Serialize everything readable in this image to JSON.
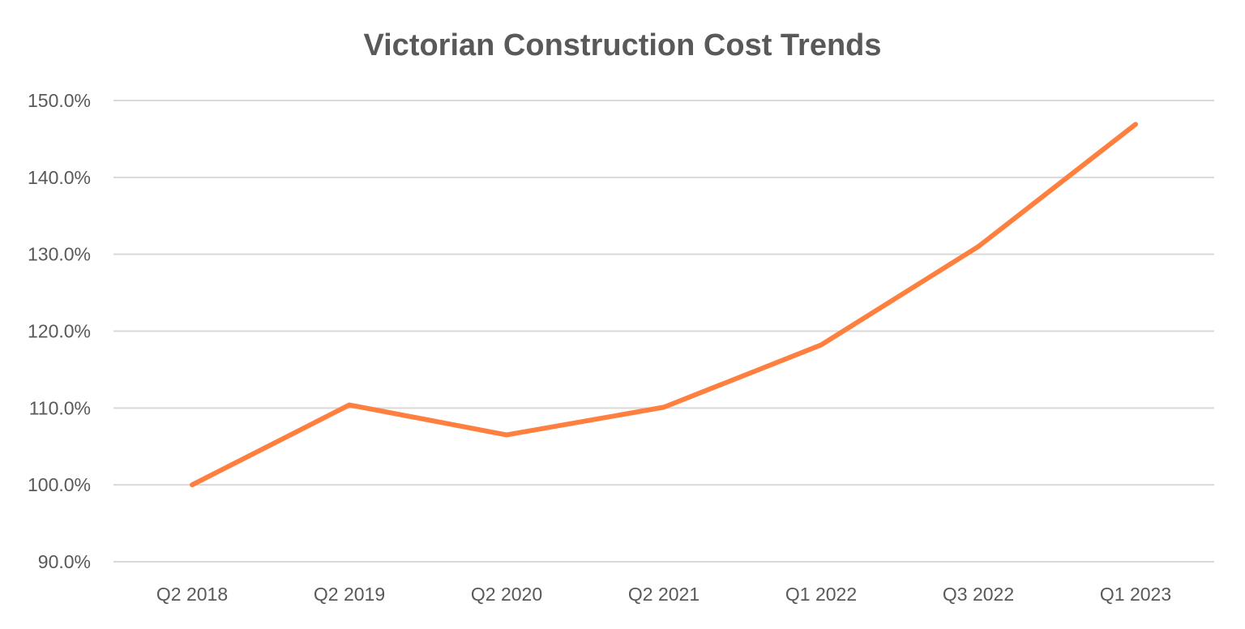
{
  "chart_data": {
    "type": "line",
    "title": "Victorian Construction Cost Trends",
    "xlabel": "",
    "ylabel": "",
    "categories": [
      "Q2 2018",
      "Q2 2019",
      "Q2 2020",
      "Q2 2021",
      "Q1 2022",
      "Q3 2022",
      "Q1 2023"
    ],
    "series": [
      {
        "values": [
          100.0,
          110.4,
          106.5,
          110.1,
          118.2,
          131.0,
          146.9
        ],
        "color": "#FF7F3F"
      }
    ],
    "ylim": [
      90,
      150
    ],
    "yticks": [
      90,
      100,
      110,
      120,
      130,
      140,
      150
    ],
    "ytick_labels": [
      "90.0%",
      "100.0%",
      "110.0%",
      "120.0%",
      "130.0%",
      "140.0%",
      "150.0%"
    ],
    "grid": true,
    "legend": "none"
  }
}
